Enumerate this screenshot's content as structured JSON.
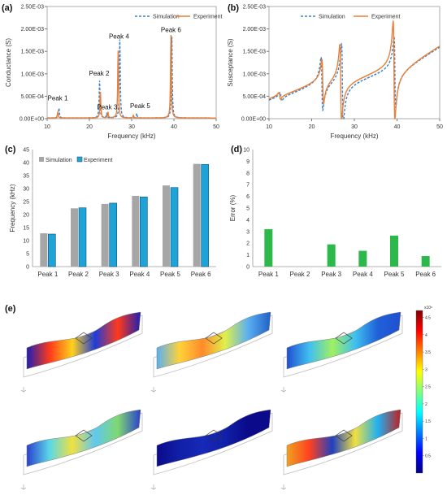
{
  "figure": {
    "panel_labels": [
      "(a)",
      "(b)",
      "(c)",
      "(d)",
      "(e)"
    ]
  },
  "chart_data": [
    {
      "panel": "(a)",
      "type": "line",
      "xlabel": "Frequency (kHz)",
      "ylabel": "Conductance (S)",
      "xlim": [
        10,
        50
      ],
      "ylim": [
        0,
        0.0025
      ],
      "xticks": [
        "10",
        "20",
        "30",
        "40",
        "50"
      ],
      "yticks": [
        "0.00E+00",
        "5.00E-04",
        "1.00E-03",
        "1.50E-03",
        "2.00E-03",
        "2.50E-03"
      ],
      "grid": false,
      "legend_position": "top-right",
      "series": [
        {
          "name": "Simulation",
          "color": "#3b82c4",
          "dash": true,
          "peaks": [
            [
              12.8,
              0.00022
            ],
            [
              22.4,
              0.00083
            ],
            [
              24.1,
              0.0001
            ],
            [
              27.2,
              0.00175
            ],
            [
              31.2,
              0.0001
            ],
            [
              39.5,
              0.00181
            ]
          ]
        },
        {
          "name": "Experiment",
          "color": "#e8803a",
          "dash": false,
          "peaks": [
            [
              12.5,
              0.00013
            ],
            [
              22.6,
              0.00058
            ],
            [
              24.4,
              0.00012
            ],
            [
              26.8,
              0.0015
            ],
            [
              30.4,
              6e-05
            ],
            [
              39.3,
              0.00185
            ]
          ]
        }
      ],
      "annotations": [
        {
          "text": "Peak 1",
          "x": 12.5,
          "y": 0.00041
        },
        {
          "text": "Peak 2",
          "x": 22.3,
          "y": 0.00096
        },
        {
          "text": "Peak 3",
          "x": 24.2,
          "y": 0.00021
        },
        {
          "text": "Peak 4",
          "x": 27.0,
          "y": 0.00178
        },
        {
          "text": "Peak 5",
          "x": 32.0,
          "y": 0.00024
        },
        {
          "text": "Peak 6",
          "x": 39.3,
          "y": 0.00193
        }
      ]
    },
    {
      "panel": "(b)",
      "type": "line",
      "xlabel": "Frequency (kHz)",
      "ylabel": "Susceptance (S)",
      "xlim": [
        10,
        50
      ],
      "ylim": [
        0,
        0.0025
      ],
      "xticks": [
        "10",
        "20",
        "30",
        "40",
        "50"
      ],
      "yticks": [
        "0.00E+00",
        "5.00E-04",
        "1.00E-03",
        "1.50E-03",
        "2.00E-03",
        "2.50E-03"
      ],
      "grid": false,
      "legend_position": "top-center",
      "series": [
        {
          "name": "Simulation",
          "color": "#3b82c4",
          "dash": true,
          "baseline": [
            [
              10,
              0.00035
            ],
            [
              20,
              0.00063
            ],
            [
              30,
              0.00087
            ],
            [
              40,
              0.0011
            ],
            [
              50,
              0.00165
            ]
          ],
          "resonances": [
            [
              12.8,
              0.0001
            ],
            [
              22.4,
              0.0006
            ],
            [
              27.2,
              0.0009
            ],
            [
              39.5,
              0.0008
            ]
          ]
        },
        {
          "name": "Experiment",
          "color": "#e8803a",
          "dash": false,
          "baseline": [
            [
              10,
              0.00038
            ],
            [
              20,
              0.00066
            ],
            [
              30,
              0.0009
            ],
            [
              40,
              0.00113
            ],
            [
              50,
              0.00168
            ]
          ],
          "resonances": [
            [
              12.5,
              8e-05
            ],
            [
              22.6,
              0.0005
            ],
            [
              26.8,
              0.00085
            ],
            [
              39.3,
              0.0011
            ]
          ]
        }
      ]
    },
    {
      "panel": "(c)",
      "type": "bar",
      "xlabel": "",
      "ylabel": "Frequency (kHz)",
      "ylim": [
        0,
        45
      ],
      "yticks": [
        "0",
        "5",
        "10",
        "15",
        "20",
        "25",
        "30",
        "35",
        "40",
        "45"
      ],
      "grid": false,
      "legend_position": "top-left",
      "categories": [
        "Peak 1",
        "Peak 2",
        "Peak 3",
        "Peak 4",
        "Peak 5",
        "Peak 6"
      ],
      "series": [
        {
          "name": "Simulation",
          "color": "#a6a6a6",
          "values": [
            12.8,
            22.4,
            24.1,
            27.2,
            31.2,
            39.5
          ]
        },
        {
          "name": "Experiment",
          "color": "#1fa3d6",
          "values": [
            12.5,
            22.6,
            24.4,
            26.8,
            30.4,
            39.3
          ]
        }
      ]
    },
    {
      "panel": "(d)",
      "type": "bar",
      "xlabel": "",
      "ylabel": "Error (%)",
      "ylim": [
        0,
        10
      ],
      "yticks": [
        "0",
        "1",
        "2",
        "3",
        "4",
        "5",
        "6",
        "7",
        "8",
        "9",
        "10"
      ],
      "grid": false,
      "categories": [
        "Peak 1",
        "Peak 2",
        "Peak 3",
        "Peak 4",
        "Peak 5",
        "Peak 6"
      ],
      "series": [
        {
          "color": "#2db84b",
          "values": [
            3.2,
            0.0,
            1.9,
            1.35,
            2.65,
            0.9
          ]
        }
      ]
    },
    {
      "panel": "(e)",
      "type": "heatmap",
      "colorbar": {
        "exponent": "x10⁶",
        "ticks": [
          "4.5",
          "4",
          "3.5",
          "3",
          "2.5",
          "2",
          "1.5",
          "1",
          "0.5"
        ],
        "range": [
          0,
          4.7
        ]
      },
      "mode_shape_count": 6
    }
  ]
}
